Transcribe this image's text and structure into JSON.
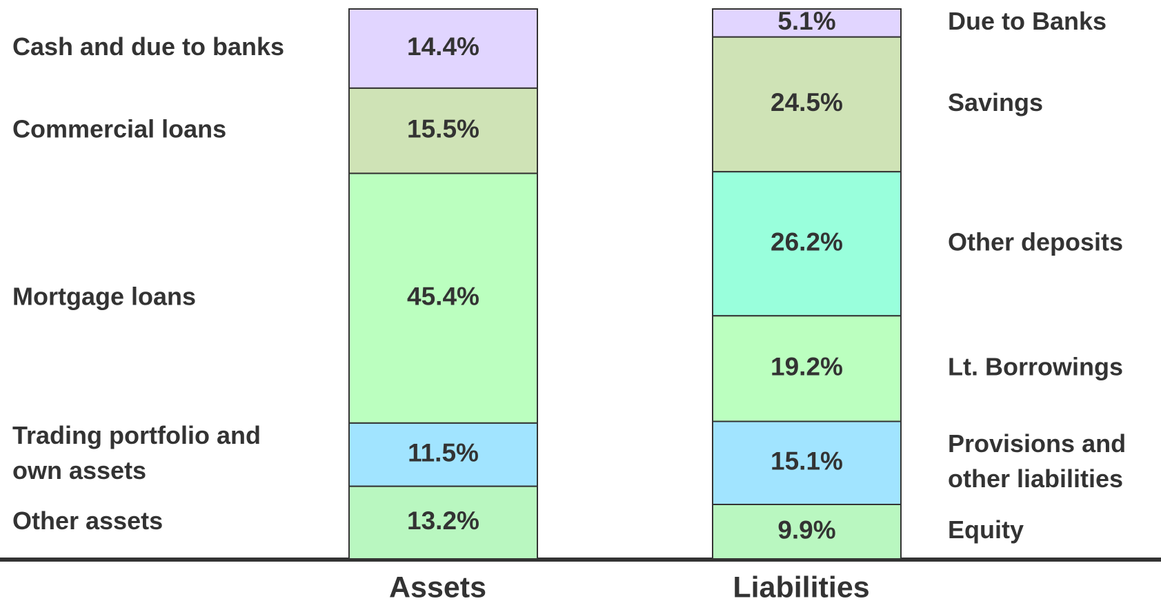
{
  "chart_data": {
    "type": "stacked_bar",
    "categories": [
      "Assets",
      "Liabilities"
    ],
    "bars": [
      {
        "segments": [
          {
            "label": [
              "Cash and due to banks"
            ],
            "value": 14.4,
            "value_label": "14.4%",
            "color": "#e1d5ff"
          },
          {
            "label": [
              "Commercial loans"
            ],
            "value": 15.5,
            "value_label": "15.5%",
            "color": "#cfe3b6"
          },
          {
            "label": [
              "Mortgage loans"
            ],
            "value": 45.4,
            "value_label": "45.4%",
            "color": "#bbffbf"
          },
          {
            "label": [
              "Trading portfolio and",
              "own assets"
            ],
            "value": 11.5,
            "value_label": "11.5%",
            "color": "#a1e4ff"
          },
          {
            "label": [
              "Other assets"
            ],
            "value": 13.2,
            "value_label": "13.2%",
            "color": "#b9f7c0"
          }
        ]
      },
      {
        "segments": [
          {
            "label": [
              "Due to Banks"
            ],
            "value": 5.1,
            "value_label": "5.1%",
            "color": "#e1d5ff"
          },
          {
            "label": [
              "Savings"
            ],
            "value": 24.5,
            "value_label": "24.5%",
            "color": "#cfe3b6"
          },
          {
            "label": [
              "Other deposits"
            ],
            "value": 26.2,
            "value_label": "26.2%",
            "color": "#99ffdc"
          },
          {
            "label": [
              "Lt. Borrowings"
            ],
            "value": 19.2,
            "value_label": "19.2%",
            "color": "#bbffbf"
          },
          {
            "label": [
              "Provisions and",
              "other liabilities"
            ],
            "value": 15.1,
            "value_label": "15.1%",
            "color": "#a1e4ff"
          },
          {
            "label": [
              "Equity"
            ],
            "value": 9.9,
            "value_label": "9.9%",
            "color": "#b9f7c0"
          }
        ]
      }
    ]
  }
}
